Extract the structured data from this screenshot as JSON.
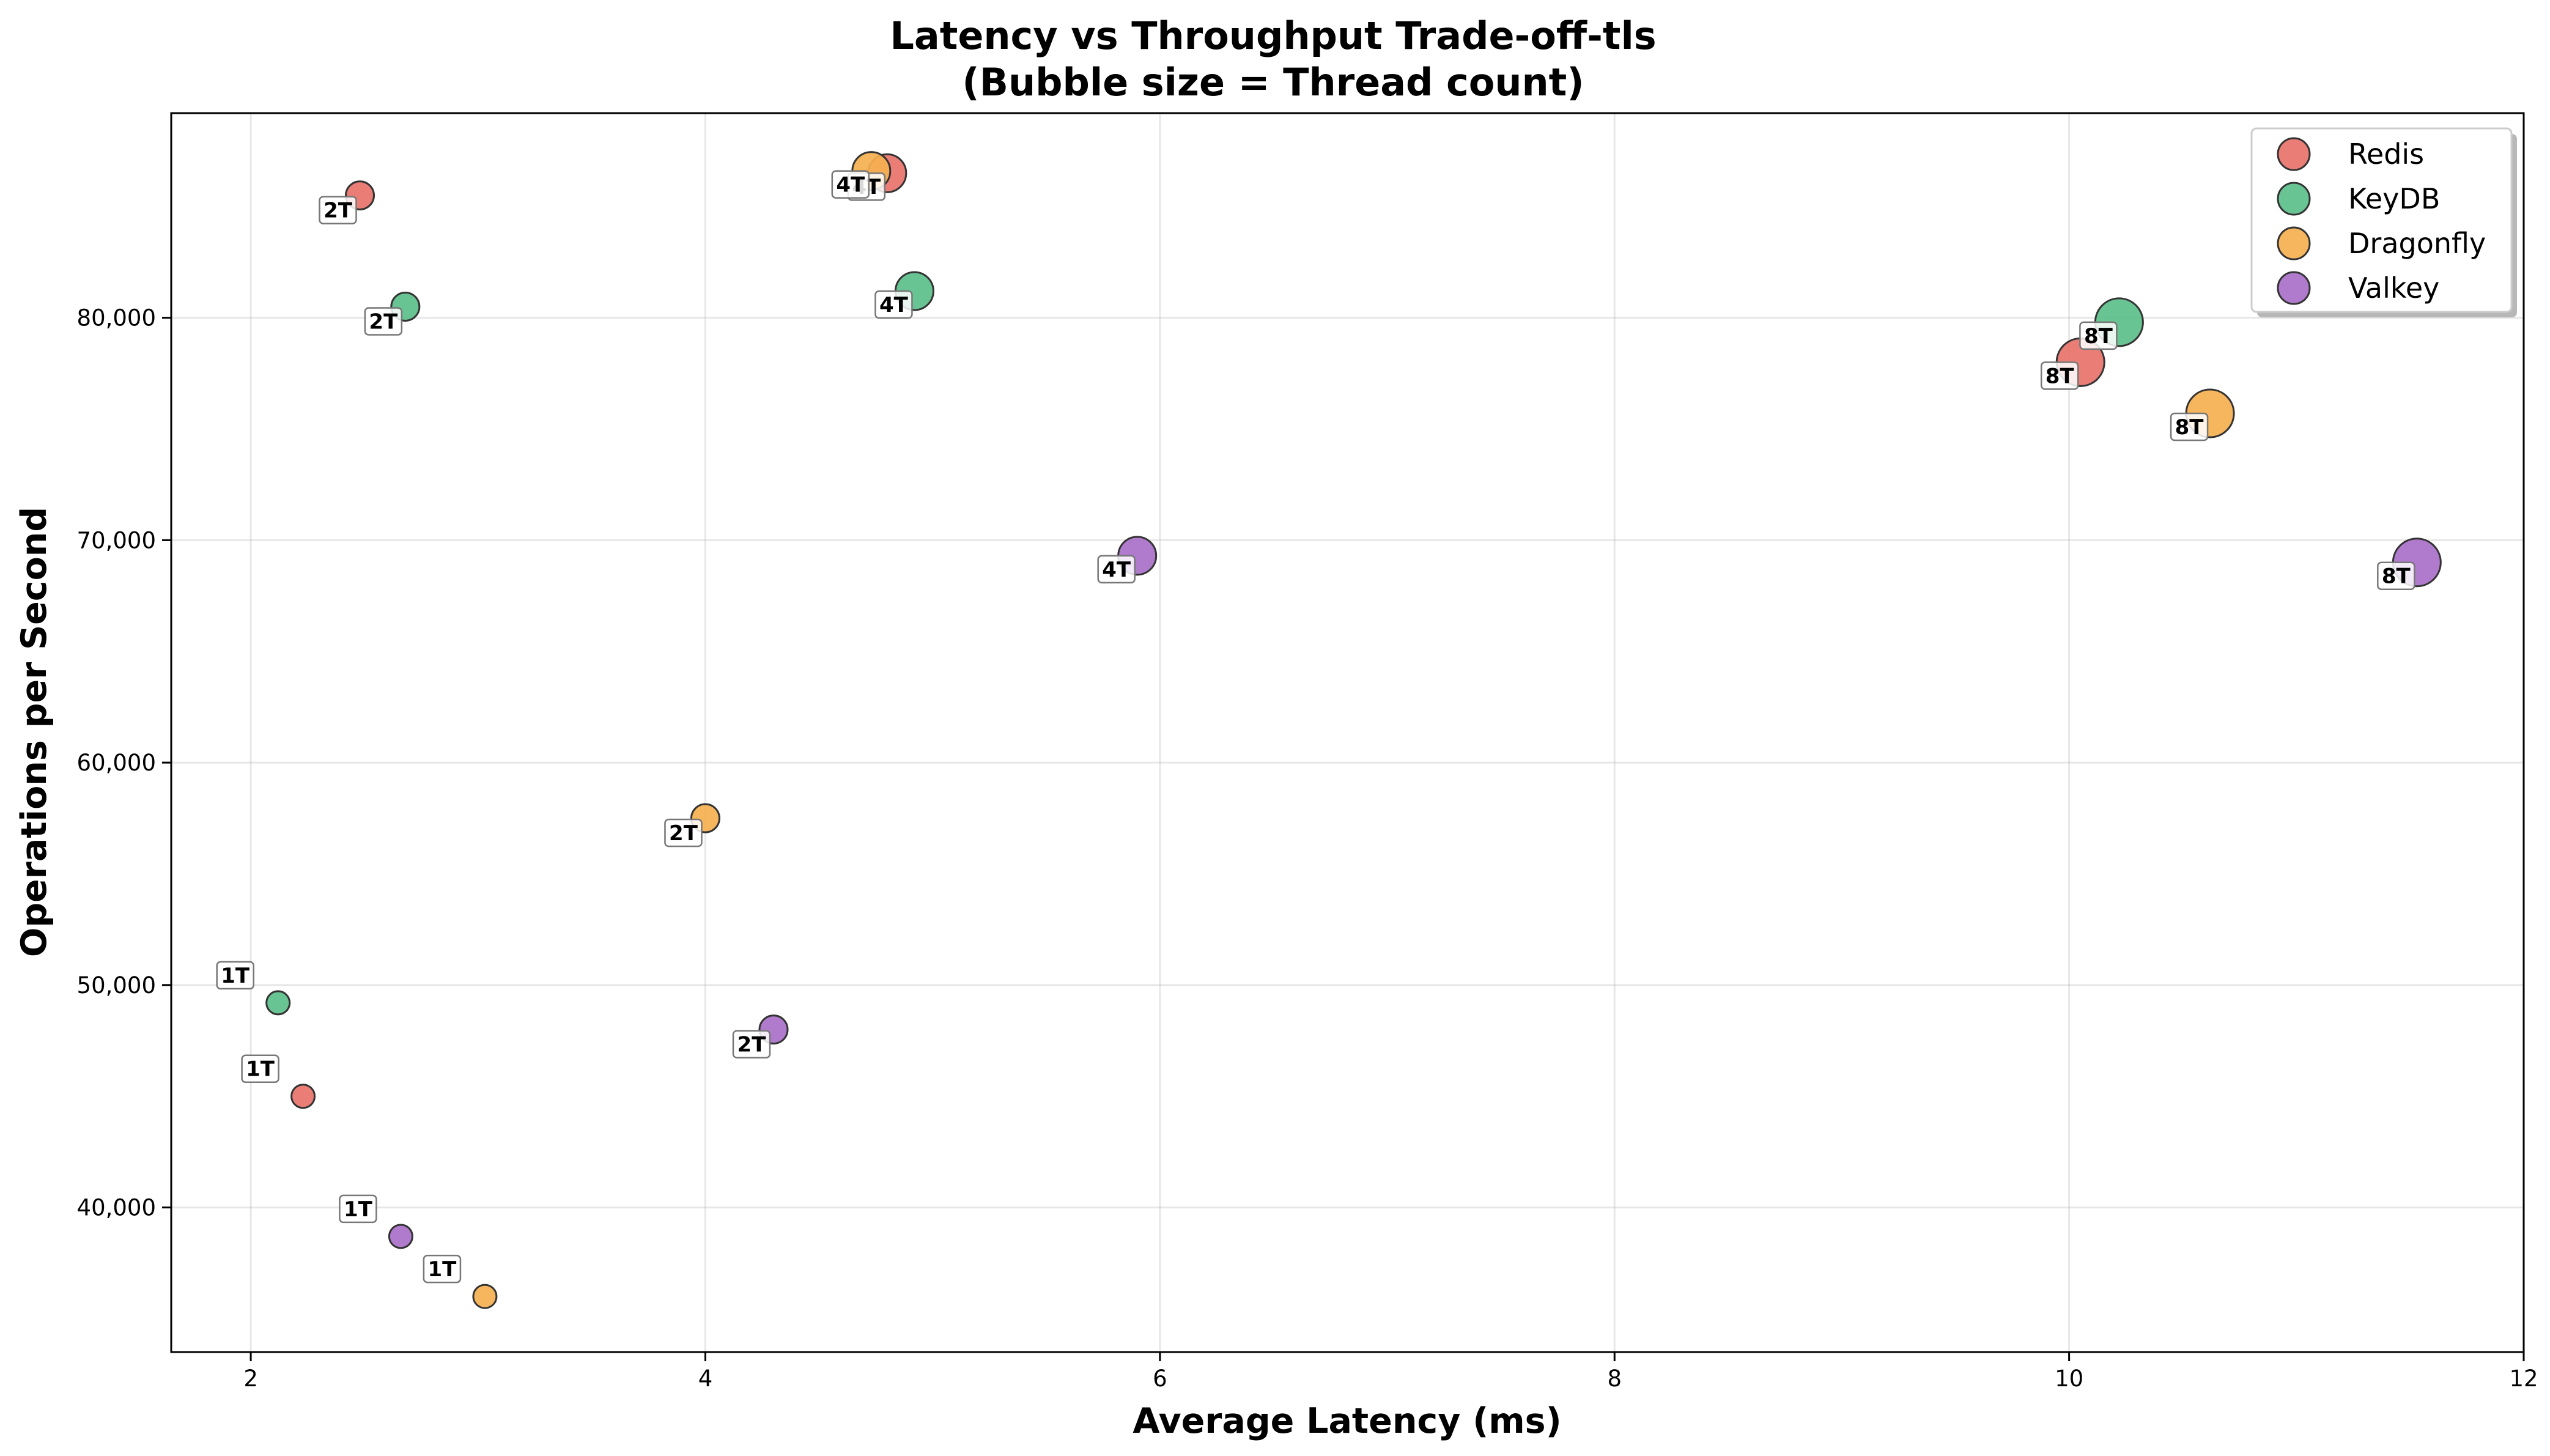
{
  "chart_data": {
    "type": "scatter",
    "title": "Latency vs Throughput Trade-off-tls",
    "subtitle": "(Bubble size = Thread count)",
    "xlabel": "Average Latency (ms)",
    "ylabel": "Operations per Second",
    "xlim": [
      1.65,
      12.0
    ],
    "ylim": [
      33500,
      89200
    ],
    "x_ticks": [
      2,
      4,
      6,
      8,
      10,
      12
    ],
    "y_ticks": [
      40000,
      50000,
      60000,
      70000,
      80000
    ],
    "x_tick_labels": [
      "2",
      "4",
      "6",
      "8",
      "10",
      "12"
    ],
    "y_tick_labels": [
      "40,000",
      "50,000",
      "60,000",
      "70,000",
      "80,000"
    ],
    "grid": true,
    "legend_position": "top-right",
    "series": [
      {
        "name": "Redis",
        "color": "#e8736b",
        "points": [
          {
            "x": 2.23,
            "y": 45000,
            "threads": 1,
            "label": "1T"
          },
          {
            "x": 2.48,
            "y": 85500,
            "threads": 2,
            "label": "2T"
          },
          {
            "x": 4.8,
            "y": 86500,
            "threads": 4,
            "label": "4T"
          },
          {
            "x": 10.05,
            "y": 78000,
            "threads": 8,
            "label": "8T"
          }
        ]
      },
      {
        "name": "KeyDB",
        "color": "#5cbf8a",
        "points": [
          {
            "x": 2.12,
            "y": 49200,
            "threads": 1,
            "label": "1T"
          },
          {
            "x": 2.68,
            "y": 80500,
            "threads": 2,
            "label": "2T"
          },
          {
            "x": 4.92,
            "y": 81200,
            "threads": 4,
            "label": "4T"
          },
          {
            "x": 10.22,
            "y": 79800,
            "threads": 8,
            "label": "8T"
          }
        ]
      },
      {
        "name": "Dragonfly",
        "color": "#f5b04f",
        "points": [
          {
            "x": 3.03,
            "y": 36000,
            "threads": 1,
            "label": "1T"
          },
          {
            "x": 4.0,
            "y": 57500,
            "threads": 2,
            "label": "2T"
          },
          {
            "x": 4.73,
            "y": 86600,
            "threads": 4,
            "label": "4T"
          },
          {
            "x": 10.62,
            "y": 75700,
            "threads": 8,
            "label": "8T"
          }
        ]
      },
      {
        "name": "Valkey",
        "color": "#a970c8",
        "points": [
          {
            "x": 2.66,
            "y": 38700,
            "threads": 1,
            "label": "1T"
          },
          {
            "x": 4.3,
            "y": 48000,
            "threads": 2,
            "label": "2T"
          },
          {
            "x": 5.9,
            "y": 69300,
            "threads": 4,
            "label": "4T"
          },
          {
            "x": 11.53,
            "y": 69000,
            "threads": 8,
            "label": "8T"
          }
        ]
      }
    ]
  }
}
